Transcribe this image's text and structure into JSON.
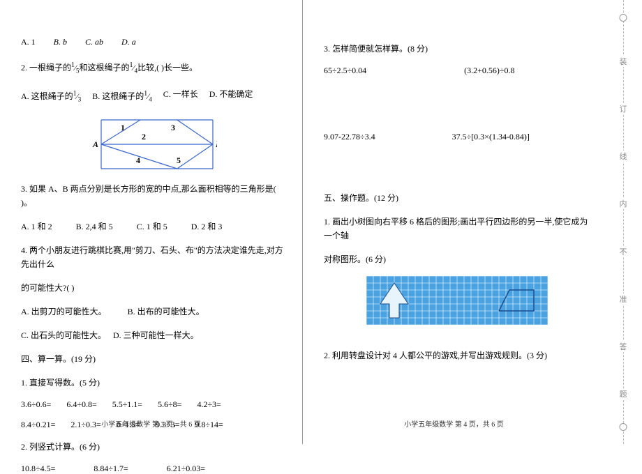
{
  "left": {
    "q1_opts": {
      "a": "A. 1",
      "b": "B. b",
      "c": "C. ab",
      "d": "D. a"
    },
    "q2_stem_a": "2.  一根绳子的",
    "q2_frac1_top": "1",
    "q2_frac1_bot": "5",
    "q2_stem_b": "和这根绳子的",
    "q2_frac2_top": "1",
    "q2_frac2_bot": "4",
    "q2_stem_c": "比较,(       )长一些。",
    "q2o": {
      "a_pre": "A.  这根绳子的",
      "a_top": "1",
      "a_bot": "3",
      "b_pre": "B.  这根绳子的",
      "b_top": "1",
      "b_bot": "4",
      "c": "C.  一样长",
      "d": "D.  不能确定"
    },
    "rect_fig": {
      "width": 160,
      "height": 70,
      "A": "A",
      "B": "B",
      "n1": "1",
      "n2": "2",
      "n3": "3",
      "n4": "4",
      "n5": "5",
      "stroke": "#3a66cc"
    },
    "q3_stem": "3.  如果 A、B 两点分别是长方形的宽的中点,那么面积相等的三角形是(       )。",
    "q3o": {
      "a": "A. 1 和 2",
      "b": "B. 2,4 和 5",
      "c": "C. 1 和 5",
      "d": "D. 2 和 3"
    },
    "q4a": "4.  两个小朋友进行跳棋比赛,用\"剪刀、石头、布\"的方法决定谁先走,对方先出什么",
    "q4b": "的可能性大?(       )",
    "q4o": {
      "a": "A.  出剪刀的可能性大。",
      "b": "B.  出布的可能性大。",
      "c": "C.  出石头的可能性大。",
      "d": "D.  三种可能性一样大。"
    },
    "sec4": "四、算一算。(19 分)",
    "s41": "1.  直接写得数。(5 分)",
    "row1": [
      "3.6÷0.6=",
      "6.4÷0.8=",
      "5.5÷1.1=",
      "5.6÷8=",
      "4.2÷3="
    ],
    "row2": [
      "8.4÷0.21=",
      "2.1÷0.3=",
      "0÷1.5=",
      "9.3÷3=",
      "9.8÷14="
    ],
    "s42": "2.  列竖式计算。(6 分)",
    "row3": [
      "10.8÷4.5=",
      "8.84÷1.7=",
      "6.21÷0.03="
    ],
    "footer": "小学五年级数学  第 3 页，共 6 页"
  },
  "right": {
    "s43": "3.  怎样简便就怎样算。(8 分)",
    "rA": [
      "65÷2.5÷0.04",
      "(3.2+0.56)÷0.8"
    ],
    "rB": [
      "9.07-22.78÷3.4",
      "37.5÷[0.3×(1.34-0.84)]"
    ],
    "sec5": "五、操作题。(12 分)",
    "s51a": "1.  画出小树图向右平移 6 格后的图形;画出平行四边形的另一半,使它成为一个轴",
    "s51b": "对称图形。(6 分)",
    "grid": {
      "cols": 26,
      "rows": 7,
      "cell": 10,
      "bg": "#4aa3e0",
      "line": "#ffffff",
      "tree_fill": "#e8f4fb",
      "para_stroke": "#1a4d8f"
    },
    "s52": "2.  利用转盘设计对 4 人都公平的游戏,并写出游戏规则。(3 分)",
    "footer": "小学五年级数学  第 4 页，共 6 页",
    "bind_chars": [
      "装",
      "订",
      "线",
      "内",
      "不",
      "准",
      "答",
      "题"
    ]
  }
}
